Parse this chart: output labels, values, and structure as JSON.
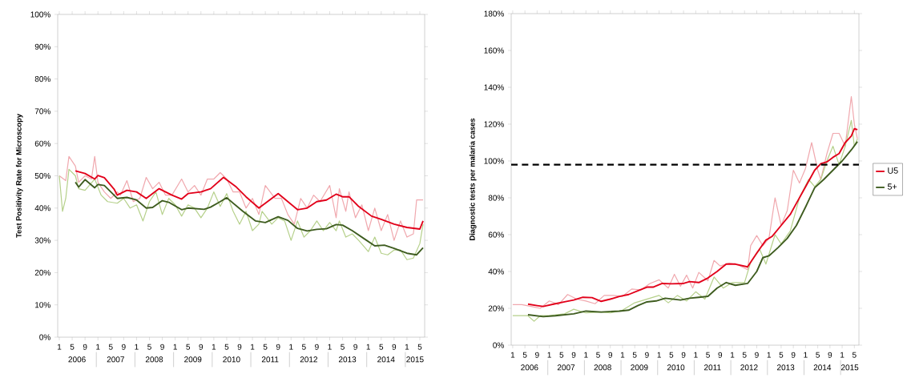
{
  "chart_data": [
    {
      "type": "line",
      "ylabel": "Test Positivity Rate for Microscopy",
      "xlim": [
        "2005-12-16",
        "2015-06-16"
      ],
      "ylim": [
        0,
        100
      ],
      "yticks": [
        {
          "value": 0,
          "label": "0%"
        },
        {
          "value": 10,
          "label": "10%"
        },
        {
          "value": 20,
          "label": "20%"
        },
        {
          "value": 30,
          "label": "30%"
        },
        {
          "value": 40,
          "label": "40%"
        },
        {
          "value": 50,
          "label": "50%"
        },
        {
          "value": 60,
          "label": "60%"
        },
        {
          "value": 70,
          "label": "70%"
        },
        {
          "value": 80,
          "label": "80%"
        },
        {
          "value": 90,
          "label": "90%"
        },
        {
          "value": 100,
          "label": "100%"
        }
      ],
      "xticks": [
        {
          "value": "2006-01",
          "label": "1"
        },
        {
          "value": "2006-05",
          "label": "5"
        },
        {
          "value": "2006-09",
          "label": "9"
        },
        {
          "value": "2007-01",
          "label": "1"
        },
        {
          "value": "2007-05",
          "label": "5"
        },
        {
          "value": "2007-09",
          "label": "9"
        },
        {
          "value": "2008-01",
          "label": "1"
        },
        {
          "value": "2008-05",
          "label": "5"
        },
        {
          "value": "2008-09",
          "label": "9"
        },
        {
          "value": "2009-01",
          "label": "1"
        },
        {
          "value": "2009-05",
          "label": "5"
        },
        {
          "value": "2009-09",
          "label": "9"
        },
        {
          "value": "2010-01",
          "label": "1"
        },
        {
          "value": "2010-05",
          "label": "5"
        },
        {
          "value": "2010-09",
          "label": "9"
        },
        {
          "value": "2011-01",
          "label": "1"
        },
        {
          "value": "2011-05",
          "label": "5"
        },
        {
          "value": "2011-09",
          "label": "9"
        },
        {
          "value": "2012-01",
          "label": "1"
        },
        {
          "value": "2012-05",
          "label": "5"
        },
        {
          "value": "2012-09",
          "label": "9"
        },
        {
          "value": "2013-01",
          "label": "1"
        },
        {
          "value": "2013-05",
          "label": "5"
        },
        {
          "value": "2013-09",
          "label": "9"
        },
        {
          "value": "2014-01",
          "label": "1"
        },
        {
          "value": "2014-05",
          "label": "5"
        },
        {
          "value": "2014-09",
          "label": "9"
        },
        {
          "value": "2015-01",
          "label": "1"
        },
        {
          "value": "2015-05",
          "label": "5"
        }
      ],
      "annotations": [
        "2006",
        "2007",
        "2008",
        "2009",
        "2010",
        "2011",
        "2012",
        "2013",
        "2014",
        "2015"
      ],
      "series": [
        {
          "color": "#f0a8ae",
          "x": [
            "2006-01",
            "2006-03",
            "2006-04",
            "2006-06",
            "2006-07",
            "2006-09",
            "2006-11",
            "2006-12",
            "2007-01",
            "2007-03",
            "2007-05",
            "2007-07",
            "2007-08",
            "2007-10",
            "2007-12",
            "2008-02",
            "2008-04",
            "2008-06",
            "2008-08",
            "2008-10",
            "2008-12",
            "2009-03",
            "2009-05",
            "2009-07",
            "2009-09",
            "2009-11",
            "2010-01",
            "2010-03",
            "2010-05",
            "2010-07",
            "2010-09",
            "2010-11",
            "2011-01",
            "2011-03",
            "2011-05",
            "2011-08",
            "2011-10",
            "2011-12",
            "2012-02",
            "2012-04",
            "2012-06",
            "2012-08",
            "2012-10",
            "2013-01",
            "2013-03",
            "2013-04",
            "2013-06",
            "2013-07",
            "2013-09",
            "2013-11",
            "2014-01",
            "2014-03",
            "2014-05",
            "2014-07",
            "2014-09",
            "2014-11",
            "2015-01",
            "2015-03",
            "2015-04",
            "2015-06"
          ],
          "values": [
            50,
            48.5,
            56,
            53,
            48,
            50,
            49,
            56,
            48,
            45,
            43,
            45,
            44,
            48.5,
            42,
            43,
            49.5,
            46,
            48,
            44,
            44,
            49,
            45,
            47,
            44,
            49,
            49,
            51,
            49,
            45,
            45,
            40,
            43,
            38,
            47,
            43,
            43,
            38,
            35,
            43,
            40,
            44,
            42,
            47,
            37,
            46,
            39,
            45,
            37,
            41,
            33,
            40,
            33,
            38,
            30,
            36,
            31,
            32,
            42.5,
            42.5
          ]
        },
        {
          "color": "#b5d08a",
          "x": [
            "2006-01",
            "2006-02",
            "2006-03",
            "2006-04",
            "2006-06",
            "2006-07",
            "2006-09",
            "2006-12",
            "2007-02",
            "2007-04",
            "2007-07",
            "2007-09",
            "2007-11",
            "2008-01",
            "2008-03",
            "2008-05",
            "2008-07",
            "2008-09",
            "2008-11",
            "2009-01",
            "2009-03",
            "2009-05",
            "2009-07",
            "2009-09",
            "2009-11",
            "2010-01",
            "2010-03",
            "2010-05",
            "2010-07",
            "2010-09",
            "2010-11",
            "2011-01",
            "2011-03",
            "2011-04",
            "2011-07",
            "2011-09",
            "2011-11",
            "2012-01",
            "2012-03",
            "2012-05",
            "2012-07",
            "2012-09",
            "2012-11",
            "2013-01",
            "2013-03",
            "2013-04",
            "2013-06",
            "2013-08",
            "2013-10",
            "2014-01",
            "2014-03",
            "2014-05",
            "2014-07",
            "2014-09",
            "2014-11",
            "2015-01",
            "2015-03",
            "2015-05",
            "2015-06"
          ],
          "values": [
            50,
            39,
            43,
            52,
            50,
            46,
            45.5,
            49,
            44,
            42,
            41.5,
            43,
            40,
            41,
            36,
            42,
            45,
            38,
            43,
            41,
            37.5,
            41,
            40,
            37,
            40,
            45,
            40.5,
            44.5,
            39,
            35,
            39,
            33,
            35,
            39,
            35,
            37,
            36,
            30,
            36,
            31,
            33,
            36,
            33,
            35.5,
            33,
            36,
            31,
            32,
            30,
            26.5,
            31,
            26,
            25.5,
            27,
            27,
            24,
            24.5,
            29,
            35
          ]
        },
        {
          "color": "#e2001a",
          "x": [
            "2006-06",
            "2006-09",
            "2006-12",
            "2007-01",
            "2007-03",
            "2007-06",
            "2007-07",
            "2007-10",
            "2008-01",
            "2008-04",
            "2008-08",
            "2008-12",
            "2009-03",
            "2009-05",
            "2009-09",
            "2009-12",
            "2010-04",
            "2010-08",
            "2010-11",
            "2011-03",
            "2011-09",
            "2012-03",
            "2012-06",
            "2012-09",
            "2012-12",
            "2013-03",
            "2013-05",
            "2013-07",
            "2013-10",
            "2014-02",
            "2014-05",
            "2014-09",
            "2015-01",
            "2015-05",
            "2015-06"
          ],
          "values": [
            51.5,
            50.7,
            49,
            50.1,
            49.4,
            45.9,
            44,
            45.5,
            45,
            43,
            46,
            44,
            42.8,
            44.5,
            45,
            46,
            49.5,
            46.5,
            43.5,
            40,
            44.5,
            39.5,
            40,
            42,
            42.5,
            44.3,
            43.5,
            43.5,
            40.5,
            37.5,
            36.5,
            35,
            34,
            33.5,
            36
          ]
        },
        {
          "color": "#3e5c1f",
          "x": [
            "2006-06",
            "2006-07",
            "2006-09",
            "2006-12",
            "2007-01",
            "2007-03",
            "2007-07",
            "2007-10",
            "2008-01",
            "2008-04",
            "2008-06",
            "2008-09",
            "2008-11",
            "2009-03",
            "2009-05",
            "2009-10",
            "2009-12",
            "2010-03",
            "2010-05",
            "2010-10",
            "2011-02",
            "2011-05",
            "2011-09",
            "2011-12",
            "2012-03",
            "2012-06",
            "2012-09",
            "2012-12",
            "2013-03",
            "2013-05",
            "2013-08",
            "2013-12",
            "2014-03",
            "2014-06",
            "2014-09",
            "2015-01",
            "2015-04",
            "2015-06"
          ],
          "values": [
            48,
            46.5,
            48.8,
            46.3,
            47.3,
            47,
            43,
            43.3,
            42.5,
            40,
            40.2,
            42.3,
            41.8,
            39.5,
            40,
            39.6,
            40.3,
            42,
            43.2,
            39,
            36,
            35.5,
            37.3,
            36.2,
            33.7,
            32.9,
            33.4,
            33.6,
            34.9,
            34.7,
            33,
            30.3,
            28.3,
            28.5,
            27.5,
            26,
            25.5,
            27.7
          ]
        }
      ]
    },
    {
      "type": "line",
      "ylabel": "Diagnostic tests per malaria cases",
      "xlim": [
        "2005-12-16",
        "2015-06-16"
      ],
      "ylim": [
        0,
        180
      ],
      "legend": "right",
      "yticks": [
        {
          "value": 0,
          "label": "0%"
        },
        {
          "value": 20,
          "label": "20%"
        },
        {
          "value": 40,
          "label": "40%"
        },
        {
          "value": 60,
          "label": "60%"
        },
        {
          "value": 80,
          "label": "80%"
        },
        {
          "value": 100,
          "label": "100%"
        },
        {
          "value": 120,
          "label": "120%"
        },
        {
          "value": 140,
          "label": "140%"
        },
        {
          "value": 160,
          "label": "160%"
        },
        {
          "value": 180,
          "label": "180%"
        }
      ],
      "xticks": [
        {
          "value": "2006-01",
          "label": "1"
        },
        {
          "value": "2006-05",
          "label": "5"
        },
        {
          "value": "2006-09",
          "label": "9"
        },
        {
          "value": "2007-01",
          "label": "1"
        },
        {
          "value": "2007-05",
          "label": "5"
        },
        {
          "value": "2007-09",
          "label": "9"
        },
        {
          "value": "2008-01",
          "label": "1"
        },
        {
          "value": "2008-05",
          "label": "5"
        },
        {
          "value": "2008-09",
          "label": "9"
        },
        {
          "value": "2009-01",
          "label": "1"
        },
        {
          "value": "2009-05",
          "label": "5"
        },
        {
          "value": "2009-09",
          "label": "9"
        },
        {
          "value": "2010-01",
          "label": "1"
        },
        {
          "value": "2010-05",
          "label": "5"
        },
        {
          "value": "2010-09",
          "label": "9"
        },
        {
          "value": "2011-01",
          "label": "1"
        },
        {
          "value": "2011-05",
          "label": "5"
        },
        {
          "value": "2011-09",
          "label": "9"
        },
        {
          "value": "2012-01",
          "label": "1"
        },
        {
          "value": "2012-05",
          "label": "5"
        },
        {
          "value": "2012-09",
          "label": "9"
        },
        {
          "value": "2013-01",
          "label": "1"
        },
        {
          "value": "2013-05",
          "label": "5"
        },
        {
          "value": "2013-09",
          "label": "9"
        },
        {
          "value": "2014-01",
          "label": "1"
        },
        {
          "value": "2014-05",
          "label": "5"
        },
        {
          "value": "2014-09",
          "label": "9"
        },
        {
          "value": "2015-01",
          "label": "1"
        },
        {
          "value": "2015-05",
          "label": "5"
        }
      ],
      "annotations": [
        "2006",
        "2007",
        "2008",
        "2009",
        "2010",
        "2011",
        "2012",
        "2013",
        "2014",
        "2015"
      ],
      "ref_lines": [
        {
          "axis": "y",
          "value": 98,
          "color": "#000000",
          "line_style": "dashed"
        }
      ],
      "series": [
        {
          "color": "#f0a8ae",
          "x": [
            "2006-01",
            "2006-04",
            "2006-07",
            "2006-10",
            "2007-01",
            "2007-04",
            "2007-07",
            "2007-10",
            "2008-01",
            "2008-04",
            "2008-07",
            "2008-10",
            "2009-01",
            "2009-04",
            "2009-07",
            "2009-10",
            "2010-01",
            "2010-04",
            "2010-06",
            "2010-08",
            "2010-10",
            "2010-12",
            "2011-02",
            "2011-05",
            "2011-07",
            "2011-09",
            "2011-12",
            "2012-03",
            "2012-06",
            "2012-07",
            "2012-09",
            "2012-11",
            "2013-01",
            "2013-03",
            "2013-05",
            "2013-07",
            "2013-09",
            "2013-11",
            "2014-01",
            "2014-03",
            "2014-05",
            "2014-06",
            "2014-08",
            "2014-10",
            "2014-12",
            "2015-02",
            "2015-04",
            "2015-05",
            "2015-06"
          ],
          "values": [
            22,
            22,
            21,
            20,
            24,
            22,
            27.5,
            25,
            24,
            22.5,
            27,
            27,
            26.5,
            30.5,
            30,
            33.5,
            35.5,
            31,
            38.5,
            32,
            38,
            31,
            39.5,
            35,
            46,
            43,
            44.5,
            43.5,
            41,
            54,
            59.5,
            54,
            58,
            80,
            65,
            73,
            95,
            88,
            96,
            110,
            95,
            90,
            104,
            115,
            115,
            108,
            135,
            120,
            112
          ]
        },
        {
          "color": "#b5d08a",
          "x": [
            "2006-01",
            "2006-06",
            "2006-08",
            "2006-10",
            "2007-01",
            "2007-06",
            "2007-09",
            "2008-01",
            "2008-06",
            "2008-09",
            "2009-01",
            "2009-05",
            "2009-09",
            "2010-01",
            "2010-04",
            "2010-07",
            "2010-10",
            "2011-01",
            "2011-04",
            "2011-07",
            "2011-10",
            "2012-01",
            "2012-05",
            "2012-07",
            "2012-10",
            "2012-12",
            "2013-03",
            "2013-05",
            "2013-08",
            "2013-11",
            "2014-02",
            "2014-04",
            "2014-06",
            "2014-08",
            "2014-10",
            "2014-12",
            "2015-02",
            "2015-04",
            "2015-05",
            "2015-06"
          ],
          "values": [
            16,
            16,
            13,
            16,
            16,
            17,
            19.5,
            17.5,
            18,
            17.5,
            19,
            23,
            25,
            27,
            23,
            27,
            24,
            29,
            25,
            37,
            31,
            34,
            34,
            45,
            52,
            44,
            60,
            55,
            62,
            80,
            90,
            86,
            90,
            100,
            108,
            98,
            108,
            122,
            108,
            112
          ]
        },
        {
          "name": "U5",
          "color": "#e2001a",
          "x": [
            "2006-06",
            "2006-09",
            "2006-11",
            "2007-03",
            "2007-06",
            "2007-09",
            "2007-12",
            "2008-03",
            "2008-06",
            "2008-09",
            "2008-12",
            "2009-03",
            "2009-06",
            "2009-09",
            "2009-11",
            "2010-02",
            "2010-05",
            "2010-09",
            "2010-11",
            "2011-02",
            "2011-05",
            "2011-08",
            "2011-11",
            "2012-02",
            "2012-06",
            "2012-09",
            "2012-12",
            "2013-02",
            "2013-05",
            "2013-08",
            "2013-10",
            "2014-01",
            "2014-04",
            "2014-06",
            "2014-08",
            "2014-10",
            "2014-12",
            "2015-02",
            "2015-04",
            "2015-05",
            "2015-06"
          ],
          "values": [
            22.3,
            21.5,
            21,
            22.5,
            23.5,
            24.5,
            26,
            25.8,
            23.8,
            25,
            26.5,
            27.5,
            29.5,
            31.5,
            31.5,
            33.5,
            33.3,
            33.5,
            34.5,
            34,
            36.5,
            40,
            44,
            44,
            42.5,
            50,
            57,
            59,
            65,
            71,
            77,
            86,
            95,
            98.5,
            99.5,
            102,
            104,
            110,
            113.5,
            117.5,
            117
          ]
        },
        {
          "name": "5+",
          "color": "#3e5c1f",
          "x": [
            "2006-06",
            "2006-11",
            "2007-03",
            "2007-09",
            "2008-01",
            "2008-06",
            "2008-12",
            "2009-03",
            "2009-06",
            "2009-09",
            "2009-12",
            "2010-03",
            "2010-08",
            "2010-11",
            "2011-02",
            "2011-05",
            "2011-08",
            "2011-11",
            "2012-02",
            "2012-06",
            "2012-09",
            "2012-11",
            "2013-01",
            "2013-04",
            "2013-07",
            "2013-10",
            "2014-01",
            "2014-04",
            "2014-07",
            "2014-10",
            "2015-01",
            "2015-04",
            "2015-06"
          ],
          "values": [
            16.5,
            15.5,
            16,
            17,
            18.5,
            18,
            18.5,
            19,
            21.5,
            23.5,
            24,
            25.5,
            24.5,
            25.5,
            26,
            26.5,
            31,
            34,
            32.5,
            33.5,
            40,
            47.5,
            48.5,
            53,
            58,
            65,
            75,
            85.5,
            90,
            95,
            100,
            106,
            110.5
          ]
        }
      ]
    }
  ]
}
